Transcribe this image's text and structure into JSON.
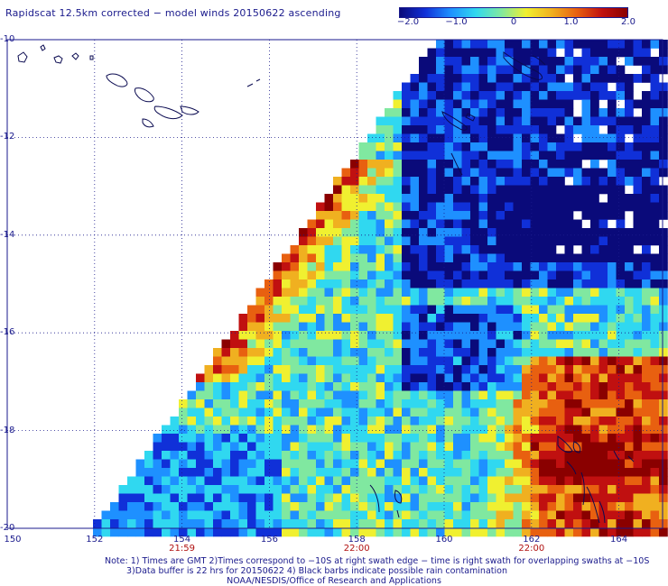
{
  "title": "Rapidscat 12.5km corrected − model winds 20150622 ascending",
  "colorbar": {
    "ticks": [
      "−2.0",
      "−1.0",
      "0",
      "1.0",
      "2.0"
    ],
    "values": [
      -2.0,
      -1.0,
      0,
      1.0,
      2.0
    ],
    "range": [
      -2.0,
      2.0
    ],
    "colors": [
      "#0a0a7a",
      "#1030d8",
      "#1e90ff",
      "#30d8f0",
      "#80e8a0",
      "#f0f030",
      "#f0b020",
      "#e86010",
      "#c01010",
      "#8a0000"
    ]
  },
  "map": {
    "lat_labels": [
      "-10",
      "-12",
      "-14",
      "-16",
      "-18",
      "-20"
    ],
    "lon_labels": [
      "150",
      "152",
      "154",
      "156",
      "158",
      "160",
      "162",
      "164"
    ],
    "lat_range": [
      -20,
      -10
    ],
    "lon_range": [
      150,
      165
    ],
    "time_labels": [
      {
        "text": "21:59",
        "lon": 154
      },
      {
        "text": "22:00",
        "lon": 158
      },
      {
        "text": "22:00",
        "lon": 162
      }
    ],
    "coast_color": "#0a0a50",
    "grid": true
  },
  "notes": {
    "line1": "Note: 1) Times are GMT 2)Times correspond to −10S at right swath edge − time is right swath for overlapping swaths at −10S",
    "line2": "3)Data buffer is 22 hrs for 20150622 4) Black barbs indicate possible rain contamination",
    "line3": "NOAA/NESDIS/Office of Research and Applications"
  }
}
